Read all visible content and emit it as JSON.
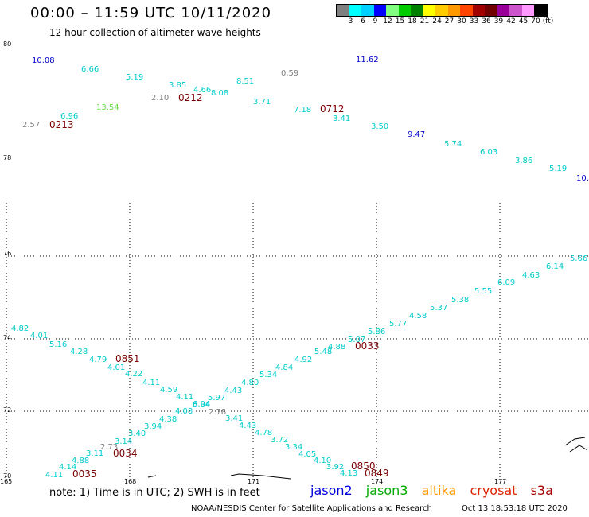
{
  "title": "00:00 – 11:59 UTC 10/11/2020",
  "subtitle": "12 hour collection of altimeter wave heights",
  "scale": {
    "colors": [
      "#808080",
      "#00ffff",
      "#00d0ff",
      "#0000ff",
      "#80ff80",
      "#00cc00",
      "#008000",
      "#ffff00",
      "#ffcc00",
      "#ff9900",
      "#ff4500",
      "#a00000",
      "#700000",
      "#990099",
      "#cc55cc",
      "#ff99ff",
      "#000000"
    ],
    "labels": [
      "3",
      "6",
      "9",
      "12",
      "15",
      "18",
      "21",
      "24",
      "27",
      "30",
      "33",
      "36",
      "39",
      "42",
      "45",
      "70",
      "(ft)"
    ]
  },
  "lat_labels": [
    "80",
    "78",
    "76",
    "74",
    "72",
    "70"
  ],
  "lon_labels": [
    "165",
    "168",
    "171",
    "174",
    "177"
  ],
  "wave_heights": [
    {
      "v": "10.08",
      "c": "#0000cc"
    },
    {
      "v": "6.66",
      "c": "#00cccc"
    },
    {
      "v": "5.19",
      "c": "#00cccc"
    },
    {
      "v": "3.85",
      "c": "#00cccc"
    },
    {
      "v": "4.66",
      "c": "#00cccc"
    },
    {
      "v": "8.08",
      "c": "#00cccc"
    },
    {
      "v": "8.51",
      "c": "#00cccc"
    },
    {
      "v": "0.59",
      "c": "#808080"
    },
    {
      "v": "11.62",
      "c": "#0000cc"
    },
    {
      "v": "2.10",
      "c": "#808080"
    },
    {
      "v": "13.54",
      "c": "#66dd44"
    },
    {
      "v": "6.96",
      "c": "#00cccc"
    },
    {
      "v": "2.57",
      "c": "#808080"
    },
    {
      "v": "3.71",
      "c": "#00cccc"
    },
    {
      "v": "7.18",
      "c": "#00cccc"
    },
    {
      "v": "3.41",
      "c": "#00cccc"
    },
    {
      "v": "3.50",
      "c": "#00cccc"
    },
    {
      "v": "9.47",
      "c": "#0000cc"
    },
    {
      "v": "5.74",
      "c": "#00cccc"
    },
    {
      "v": "6.03",
      "c": "#00cccc"
    },
    {
      "v": "3.86",
      "c": "#00cccc"
    },
    {
      "v": "5.19",
      "c": "#00cccc"
    },
    {
      "v": "10.",
      "c": "#0000cc"
    },
    {
      "v": "5.66",
      "c": "#00cccc"
    },
    {
      "v": "6.14",
      "c": "#00cccc"
    },
    {
      "v": "4.63",
      "c": "#00cccc"
    },
    {
      "v": "6.09",
      "c": "#00cccc"
    },
    {
      "v": "5.55",
      "c": "#00cccc"
    },
    {
      "v": "5.38",
      "c": "#00cccc"
    },
    {
      "v": "5.37",
      "c": "#00cccc"
    },
    {
      "v": "4.58",
      "c": "#00cccc"
    },
    {
      "v": "5.77",
      "c": "#00cccc"
    },
    {
      "v": "5.86",
      "c": "#00cccc"
    },
    {
      "v": "5.07",
      "c": "#00cccc"
    },
    {
      "v": "4.88",
      "c": "#00cccc"
    },
    {
      "v": "5.48",
      "c": "#00cccc"
    },
    {
      "v": "4.92",
      "c": "#00cccc"
    },
    {
      "v": "4.84",
      "c": "#00cccc"
    },
    {
      "v": "5.34",
      "c": "#00cccc"
    },
    {
      "v": "4.80",
      "c": "#00cccc"
    },
    {
      "v": "4.43",
      "c": "#00cccc"
    },
    {
      "v": "5.97",
      "c": "#00cccc"
    },
    {
      "v": "5.84",
      "c": "#00cccc"
    },
    {
      "v": "4.08",
      "c": "#00cccc"
    },
    {
      "v": "4.38",
      "c": "#00cccc"
    },
    {
      "v": "3.94",
      "c": "#00cccc"
    },
    {
      "v": "3.40",
      "c": "#00cccc"
    },
    {
      "v": "3.14",
      "c": "#00cccc"
    },
    {
      "v": "2.73",
      "c": "#808080"
    },
    {
      "v": "3.11",
      "c": "#00cccc"
    },
    {
      "v": "4.88",
      "c": "#00cccc"
    },
    {
      "v": "4.14",
      "c": "#00cccc"
    },
    {
      "v": "4.11",
      "c": "#00cccc"
    },
    {
      "v": "4.82",
      "c": "#00cccc"
    },
    {
      "v": "4.01",
      "c": "#00cccc"
    },
    {
      "v": "5.16",
      "c": "#00cccc"
    },
    {
      "v": "4.28",
      "c": "#00cccc"
    },
    {
      "v": "4.79",
      "c": "#00cccc"
    },
    {
      "v": "4.01",
      "c": "#00cccc"
    },
    {
      "v": "4.22",
      "c": "#00cccc"
    },
    {
      "v": "4.11",
      "c": "#00cccc"
    },
    {
      "v": "4.59",
      "c": "#00cccc"
    },
    {
      "v": "4.11",
      "c": "#00cccc"
    },
    {
      "v": "6.04",
      "c": "#00cccc"
    },
    {
      "v": "2.78",
      "c": "#808080"
    },
    {
      "v": "3.41",
      "c": "#00cccc"
    },
    {
      "v": "4.43",
      "c": "#00cccc"
    },
    {
      "v": "4.78",
      "c": "#00cccc"
    },
    {
      "v": "3.72",
      "c": "#00cccc"
    },
    {
      "v": "3.34",
      "c": "#00cccc"
    },
    {
      "v": "4.05",
      "c": "#00cccc"
    },
    {
      "v": "4.10",
      "c": "#00cccc"
    },
    {
      "v": "3.92",
      "c": "#00cccc"
    },
    {
      "v": "4.13",
      "c": "#00cccc"
    }
  ],
  "pass_times": [
    {
      "v": "0213"
    },
    {
      "v": "0212"
    },
    {
      "v": "0712"
    },
    {
      "v": "0851"
    },
    {
      "v": "0033"
    },
    {
      "v": "0034"
    },
    {
      "v": "0035"
    },
    {
      "v": "0850"
    },
    {
      "v": "0849"
    }
  ],
  "note": "note:  1) Time is in UTC;  2) SWH is in feet",
  "legend": [
    {
      "label": "jason2",
      "color": "#0000dd"
    },
    {
      "label": "jason3",
      "color": "#00aa00"
    },
    {
      "label": "altika",
      "color": "#ff9900"
    },
    {
      "label": "cryosat",
      "color": "#dd2200"
    },
    {
      "label": "s3a",
      "color": "#aa0000"
    }
  ],
  "credit": "NOAA/NESDIS Center for Satellite Applications and Research",
  "timestamp": "Oct 13 18:53:18 UTC 2020"
}
